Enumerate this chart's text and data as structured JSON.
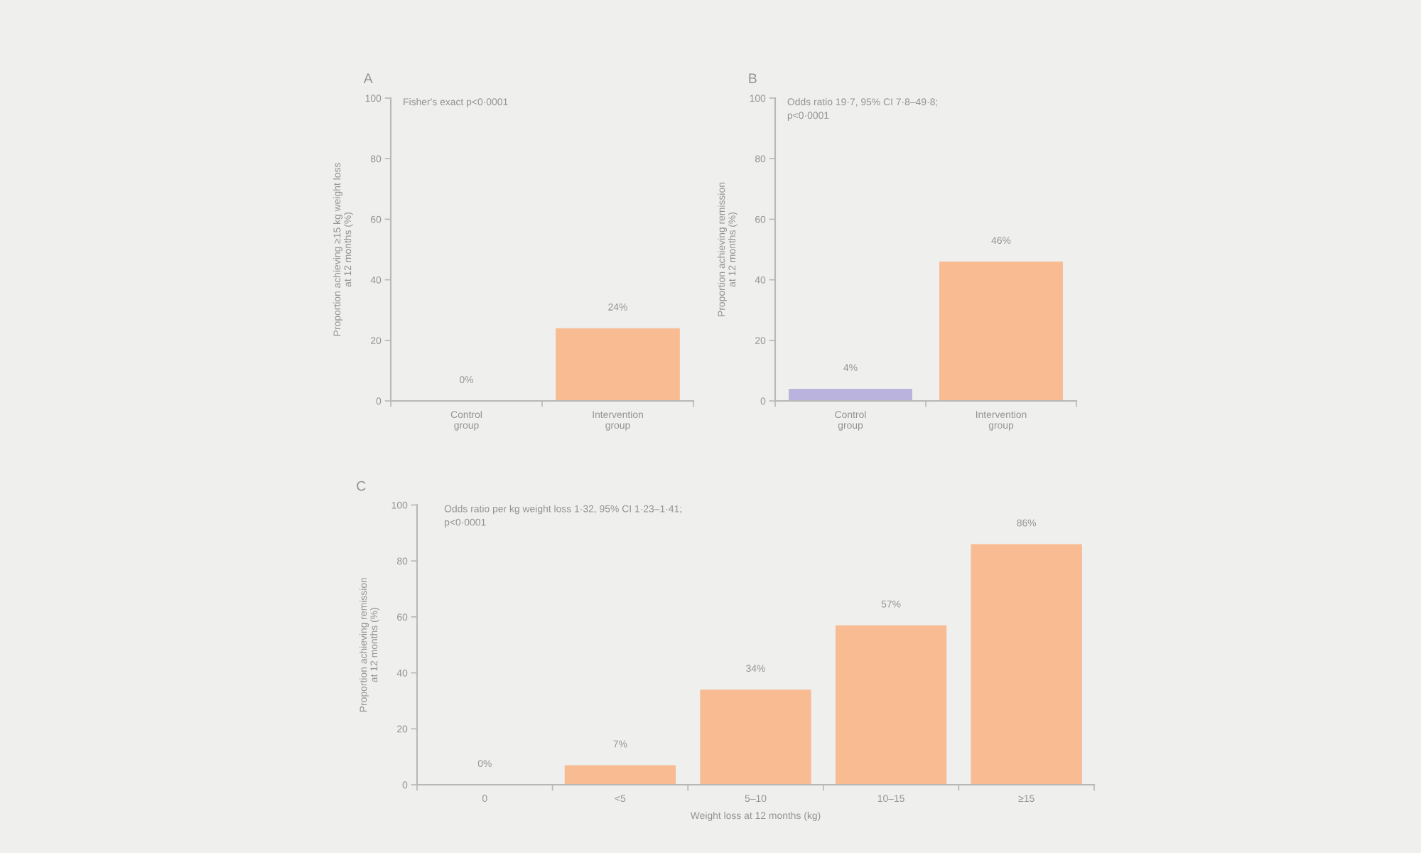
{
  "chart_data": [
    {
      "type": "bar",
      "title": "A",
      "ylabel": "Proportion achieving ≥15 kg weight loss\nat 12 months (%)",
      "annotations": [
        "Fisher's exact p<0·0001"
      ],
      "categories": [
        "Control\ngroup",
        "Intervention\ngroup"
      ],
      "values": [
        0,
        24
      ],
      "value_labels": [
        "0%",
        "24%"
      ],
      "colors": [
        "#b9b3dd",
        "#f8bb92"
      ],
      "ylim": [
        0,
        100
      ],
      "yticks": [
        0,
        20,
        40,
        60,
        80,
        100
      ]
    },
    {
      "type": "bar",
      "title": "B",
      "ylabel": "Proportion achieving remission\nat 12 months (%)",
      "annotations": [
        "Odds ratio 19·7, 95% CI 7·8–49·8;\np<0·0001"
      ],
      "categories": [
        "Control\ngroup",
        "Intervention\ngroup"
      ],
      "values": [
        4,
        46
      ],
      "value_labels": [
        "4%",
        "46%"
      ],
      "colors": [
        "#b9b3dd",
        "#f8bb92"
      ],
      "ylim": [
        0,
        100
      ],
      "yticks": [
        0,
        20,
        40,
        60,
        80,
        100
      ]
    },
    {
      "type": "bar",
      "title": "C",
      "ylabel": "Proportion achieving remission\nat 12 months (%)",
      "xlabel": "Weight loss at 12 months (kg)",
      "annotations": [
        "Odds ratio per kg weight loss 1·32, 95% CI 1·23–1·41;\np<0·0001"
      ],
      "categories": [
        "0",
        "<5",
        "5–10",
        "10–15",
        "≥15"
      ],
      "values": [
        0,
        7,
        34,
        57,
        86
      ],
      "value_labels": [
        "0%",
        "7%",
        "34%",
        "57%",
        "86%"
      ],
      "color": "#f8bb92",
      "ylim": [
        0,
        100
      ],
      "yticks": [
        0,
        20,
        40,
        60,
        80,
        100
      ]
    }
  ]
}
